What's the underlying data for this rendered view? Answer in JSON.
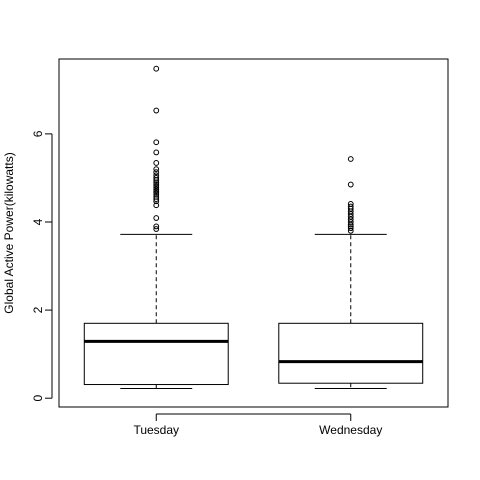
{
  "chart_data": {
    "type": "boxplot",
    "title": "",
    "xlabel": "",
    "ylabel": "Global Active Power(kilowatts)",
    "ylim": [
      -0.2,
      7.7
    ],
    "yticks": [
      0,
      2,
      4,
      6
    ],
    "ytick_labels": [
      "0",
      "2",
      "4",
      "6"
    ],
    "grid": false,
    "categories": [
      "Tuesday",
      "Wednesday"
    ],
    "boxes": [
      {
        "category": "Tuesday",
        "whisker_low": 0.22,
        "q1": 0.31,
        "median": 1.29,
        "q3": 1.7,
        "whisker_high": 3.72,
        "outliers": [
          7.48,
          6.53,
          5.81,
          5.58,
          5.34,
          5.2,
          5.13,
          5.06,
          5.0,
          4.95,
          4.9,
          4.86,
          4.82,
          4.78,
          4.74,
          4.7,
          4.66,
          4.62,
          4.57,
          4.52,
          4.47,
          4.38,
          4.09,
          3.9,
          3.84
        ]
      },
      {
        "category": "Wednesday",
        "whisker_low": 0.22,
        "q1": 0.34,
        "median": 0.83,
        "q3": 1.7,
        "whisker_high": 3.72,
        "outliers": [
          5.43,
          4.85,
          4.41,
          4.35,
          4.3,
          4.24,
          4.18,
          4.12,
          4.06,
          4.0,
          3.94,
          3.9,
          3.86,
          3.8
        ]
      }
    ]
  }
}
